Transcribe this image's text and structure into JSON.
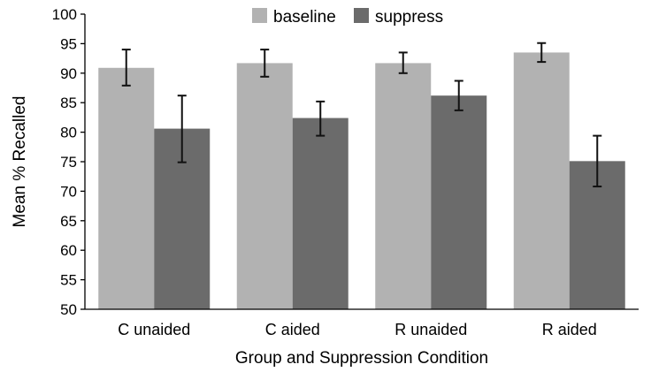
{
  "chart_data": {
    "type": "bar",
    "xlabel": "Group and Suppression Condition",
    "ylabel": "Mean % Recalled",
    "ylim": [
      50,
      100
    ],
    "yticks": [
      50,
      55,
      60,
      65,
      70,
      75,
      80,
      85,
      90,
      95,
      100
    ],
    "categories": [
      "C unaided",
      "C aided",
      "R unaided",
      "R aided"
    ],
    "legend_position": "top-center",
    "grid": false,
    "series": [
      {
        "name": "baseline",
        "color": "#b2b2b2",
        "values": [
          90.9,
          91.7,
          91.7,
          93.5
        ],
        "error_low": [
          87.9,
          89.4,
          90.0,
          91.9
        ],
        "error_high": [
          94.0,
          94.0,
          93.5,
          95.1
        ]
      },
      {
        "name": "suppress",
        "color": "#6b6b6b",
        "values": [
          80.6,
          82.4,
          86.2,
          75.1
        ],
        "error_low": [
          74.9,
          79.4,
          83.7,
          70.8
        ],
        "error_high": [
          86.2,
          85.2,
          88.7,
          79.4
        ]
      }
    ]
  }
}
